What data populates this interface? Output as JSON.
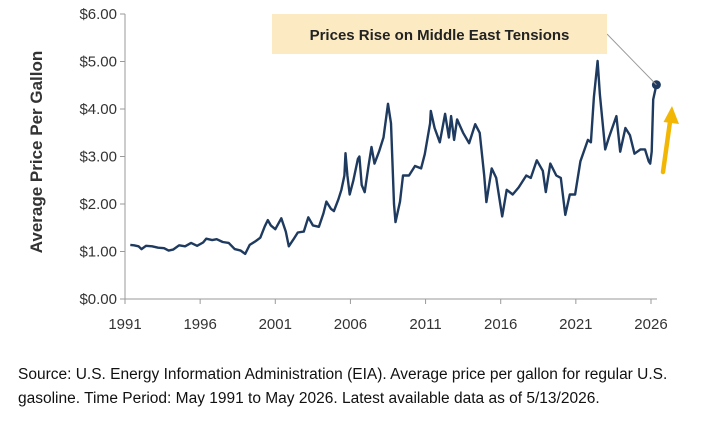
{
  "chart_data": {
    "type": "line",
    "ylabel": "Average Price Per Gallon",
    "ylim": [
      0,
      6
    ],
    "xlim": [
      1991,
      2026.4
    ],
    "y_ticks": [
      "$0.00",
      "$1.00",
      "$2.00",
      "$3.00",
      "$4.00",
      "$5.00",
      "$6.00"
    ],
    "x_ticks": [
      "1991",
      "1996",
      "2001",
      "2006",
      "2011",
      "2016",
      "2021",
      "2026"
    ],
    "annotation": "Prices Rise on Middle East Tensions",
    "series": [
      {
        "color": "#1f3a5f",
        "points": [
          [
            1991.35,
            1.14
          ],
          [
            1991.6,
            1.13
          ],
          [
            1991.9,
            1.11
          ],
          [
            1992.1,
            1.05
          ],
          [
            1992.4,
            1.12
          ],
          [
            1992.8,
            1.11
          ],
          [
            1993.2,
            1.08
          ],
          [
            1993.6,
            1.07
          ],
          [
            1993.9,
            1.02
          ],
          [
            1994.2,
            1.04
          ],
          [
            1994.6,
            1.13
          ],
          [
            1995.0,
            1.11
          ],
          [
            1995.4,
            1.18
          ],
          [
            1995.8,
            1.12
          ],
          [
            1996.2,
            1.19
          ],
          [
            1996.4,
            1.27
          ],
          [
            1996.8,
            1.24
          ],
          [
            1997.1,
            1.26
          ],
          [
            1997.5,
            1.2
          ],
          [
            1997.9,
            1.18
          ],
          [
            1998.3,
            1.05
          ],
          [
            1998.7,
            1.02
          ],
          [
            1999.0,
            0.95
          ],
          [
            1999.3,
            1.14
          ],
          [
            1999.7,
            1.22
          ],
          [
            2000.0,
            1.29
          ],
          [
            2000.3,
            1.53
          ],
          [
            2000.5,
            1.66
          ],
          [
            2000.7,
            1.55
          ],
          [
            2001.0,
            1.47
          ],
          [
            2001.4,
            1.7
          ],
          [
            2001.7,
            1.42
          ],
          [
            2001.9,
            1.11
          ],
          [
            2002.2,
            1.25
          ],
          [
            2002.5,
            1.4
          ],
          [
            2002.9,
            1.42
          ],
          [
            2003.2,
            1.72
          ],
          [
            2003.5,
            1.55
          ],
          [
            2003.9,
            1.52
          ],
          [
            2004.2,
            1.8
          ],
          [
            2004.4,
            2.05
          ],
          [
            2004.7,
            1.9
          ],
          [
            2004.9,
            1.85
          ],
          [
            2005.2,
            2.1
          ],
          [
            2005.4,
            2.3
          ],
          [
            2005.6,
            2.6
          ],
          [
            2005.67,
            3.07
          ],
          [
            2005.8,
            2.6
          ],
          [
            2005.95,
            2.2
          ],
          [
            2006.2,
            2.5
          ],
          [
            2006.5,
            2.95
          ],
          [
            2006.6,
            3.0
          ],
          [
            2006.75,
            2.4
          ],
          [
            2006.95,
            2.25
          ],
          [
            2007.2,
            2.8
          ],
          [
            2007.4,
            3.2
          ],
          [
            2007.6,
            2.85
          ],
          [
            2007.9,
            3.1
          ],
          [
            2008.2,
            3.4
          ],
          [
            2008.5,
            4.11
          ],
          [
            2008.7,
            3.7
          ],
          [
            2008.9,
            2.0
          ],
          [
            2009.0,
            1.62
          ],
          [
            2009.3,
            2.05
          ],
          [
            2009.5,
            2.6
          ],
          [
            2009.9,
            2.6
          ],
          [
            2010.3,
            2.8
          ],
          [
            2010.7,
            2.75
          ],
          [
            2010.95,
            3.05
          ],
          [
            2011.3,
            3.7
          ],
          [
            2011.35,
            3.96
          ],
          [
            2011.6,
            3.6
          ],
          [
            2011.95,
            3.3
          ],
          [
            2012.3,
            3.9
          ],
          [
            2012.55,
            3.4
          ],
          [
            2012.7,
            3.85
          ],
          [
            2012.9,
            3.35
          ],
          [
            2013.1,
            3.78
          ],
          [
            2013.5,
            3.5
          ],
          [
            2013.9,
            3.28
          ],
          [
            2014.3,
            3.68
          ],
          [
            2014.6,
            3.5
          ],
          [
            2014.9,
            2.6
          ],
          [
            2015.05,
            2.04
          ],
          [
            2015.4,
            2.75
          ],
          [
            2015.7,
            2.55
          ],
          [
            2016.1,
            1.74
          ],
          [
            2016.4,
            2.3
          ],
          [
            2016.8,
            2.2
          ],
          [
            2017.2,
            2.35
          ],
          [
            2017.7,
            2.6
          ],
          [
            2018.0,
            2.55
          ],
          [
            2018.4,
            2.92
          ],
          [
            2018.8,
            2.7
          ],
          [
            2019.0,
            2.25
          ],
          [
            2019.3,
            2.85
          ],
          [
            2019.7,
            2.6
          ],
          [
            2020.0,
            2.55
          ],
          [
            2020.3,
            1.77
          ],
          [
            2020.6,
            2.2
          ],
          [
            2020.95,
            2.2
          ],
          [
            2021.3,
            2.9
          ],
          [
            2021.8,
            3.35
          ],
          [
            2022.0,
            3.3
          ],
          [
            2022.2,
            4.25
          ],
          [
            2022.45,
            5.01
          ],
          [
            2022.6,
            4.3
          ],
          [
            2022.95,
            3.15
          ],
          [
            2023.2,
            3.4
          ],
          [
            2023.7,
            3.85
          ],
          [
            2023.95,
            3.1
          ],
          [
            2024.3,
            3.6
          ],
          [
            2024.6,
            3.45
          ],
          [
            2024.9,
            3.06
          ],
          [
            2025.3,
            3.15
          ],
          [
            2025.6,
            3.15
          ],
          [
            2025.85,
            2.9
          ],
          [
            2025.95,
            2.85
          ],
          [
            2026.05,
            3.1
          ],
          [
            2026.15,
            4.2
          ],
          [
            2026.36,
            4.51
          ]
        ]
      }
    ]
  },
  "source_note": "Source: U.S. Energy Information Administration (EIA). Average price per gallon for regular U.S. gasoline. Time Period: May 1991 to May 2026. Latest available data as of 5/13/2026.",
  "colors": {
    "line": "#1f3a5f",
    "callout_bg": "#fbeac2",
    "arrow": "#f2b705"
  }
}
